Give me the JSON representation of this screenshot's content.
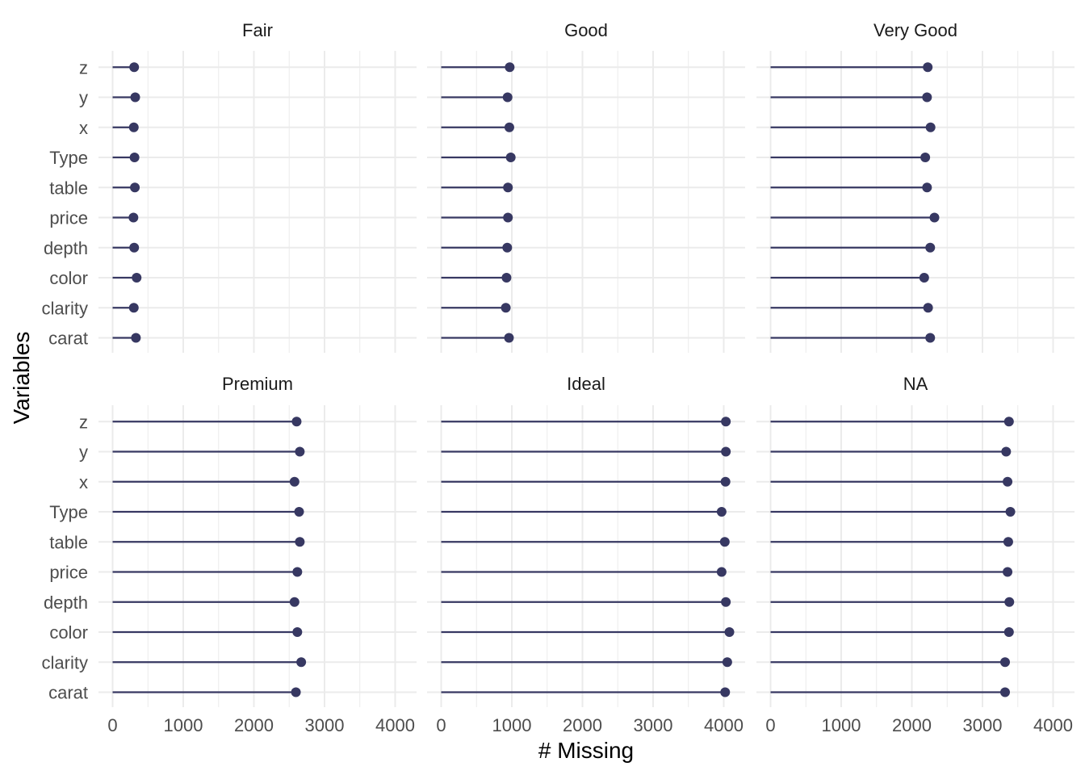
{
  "chart_data": {
    "type": "lollipop",
    "xlabel": "# Missing",
    "ylabel": "Variables",
    "xlim": [
      0,
      4300
    ],
    "x_ticks": [
      0,
      1000,
      2000,
      3000,
      4000
    ],
    "grid": true,
    "variables": [
      "carat",
      "clarity",
      "color",
      "depth",
      "price",
      "table",
      "Type",
      "x",
      "y",
      "z"
    ],
    "facets": [
      {
        "title": "Fair",
        "values": [
          330,
          300,
          340,
          305,
          295,
          315,
          310,
          300,
          320,
          305
        ]
      },
      {
        "title": "Good",
        "values": [
          960,
          915,
          925,
          935,
          945,
          945,
          985,
          965,
          940,
          970
        ]
      },
      {
        "title": "Very Good",
        "values": [
          2260,
          2230,
          2175,
          2260,
          2320,
          2215,
          2190,
          2265,
          2215,
          2225
        ]
      },
      {
        "title": "Premium",
        "values": [
          2595,
          2670,
          2615,
          2575,
          2615,
          2650,
          2640,
          2575,
          2650,
          2605
        ]
      },
      {
        "title": "Ideal",
        "values": [
          4020,
          4050,
          4080,
          4030,
          3970,
          4015,
          3970,
          4025,
          4030,
          4030
        ]
      },
      {
        "title": "NA",
        "values": [
          3320,
          3320,
          3375,
          3380,
          3355,
          3365,
          3395,
          3355,
          3335,
          3375
        ]
      }
    ],
    "colors": {
      "series": "#373862",
      "grid": "#ebebeb"
    }
  }
}
